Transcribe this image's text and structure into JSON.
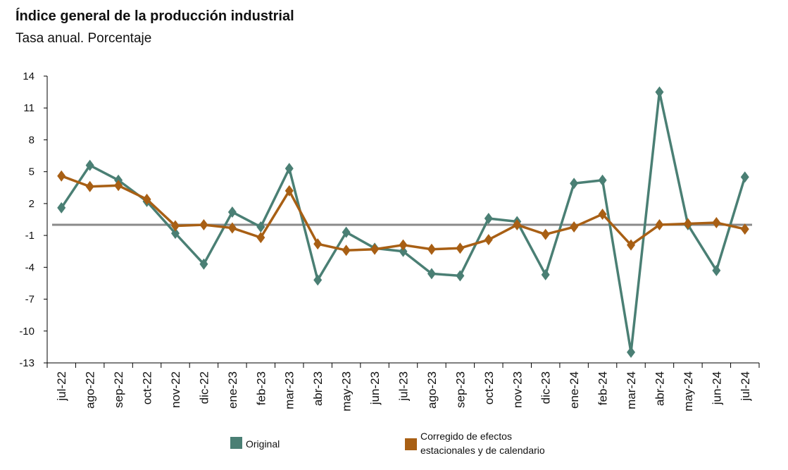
{
  "title": "Índice general de la producción industrial",
  "subtitle": "Tasa anual. Porcentaje",
  "legend": [
    {
      "label": "Original",
      "color": "#4a7f74"
    },
    {
      "label_line1": "Corregido de efectos",
      "label_line2": "estacionales y de calendario",
      "color": "#a85f14"
    }
  ],
  "chart_data": {
    "type": "line",
    "categories": [
      "jul-22",
      "ago-22",
      "sep-22",
      "oct-22",
      "nov-22",
      "dic-22",
      "ene-23",
      "feb-23",
      "mar-23",
      "abr-23",
      "may-23",
      "jun-23",
      "jul-23",
      "ago-23",
      "sep-23",
      "oct-23",
      "nov-23",
      "dic-23",
      "ene-24",
      "feb-24",
      "mar-24",
      "abr-24",
      "may-24",
      "jun-24",
      "jul-24"
    ],
    "y_ticks": [
      14,
      11,
      8,
      5,
      2,
      -1,
      -4,
      -7,
      -10,
      -13
    ],
    "ylim": [
      -13,
      14
    ],
    "baseline": 0,
    "series": [
      {
        "name": "Original",
        "color": "#4a7f74",
        "values": [
          1.6,
          5.6,
          4.2,
          2.2,
          -0.8,
          -3.7,
          1.2,
          -0.2,
          5.3,
          -5.2,
          -0.7,
          -2.2,
          -2.5,
          -4.6,
          -4.8,
          0.6,
          0.3,
          -4.7,
          3.9,
          4.2,
          -12.0,
          12.5,
          0.0,
          -4.3,
          4.5
        ]
      },
      {
        "name": "Corregido de efectos estacionales y de calendario",
        "color": "#a85f14",
        "values": [
          4.6,
          3.6,
          3.7,
          2.4,
          -0.1,
          0.0,
          -0.3,
          -1.2,
          3.2,
          -1.8,
          -2.4,
          -2.3,
          -1.9,
          -2.3,
          -2.2,
          -1.4,
          0.0,
          -0.9,
          -0.2,
          1.0,
          -1.9,
          0.0,
          0.1,
          0.2,
          -0.4
        ]
      }
    ]
  }
}
